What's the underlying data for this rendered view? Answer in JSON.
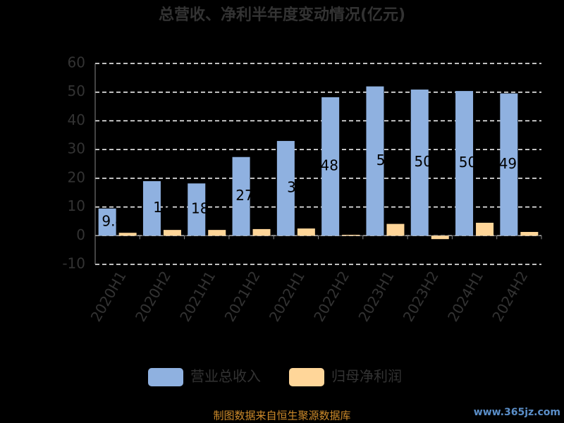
{
  "chart_data": {
    "type": "bar",
    "title": "总营收、净利半年度变动情况(亿元)",
    "categories": [
      "2020H1",
      "2020H2",
      "2021H1",
      "2021H2",
      "2022H1",
      "2022H2",
      "2023H1",
      "2023H2",
      "2024H1",
      "2024H2"
    ],
    "series": [
      {
        "name": "营业总收入",
        "color": "#8fb1e0",
        "values": [
          9.46,
          19.0,
          18.2,
          27.4,
          33.0,
          48.24,
          52.0,
          50.9,
          50.4,
          49.56
        ],
        "show_labels": true
      },
      {
        "name": "归母净利润",
        "color": "#ffd699",
        "values": [
          1.0,
          2.0,
          2.0,
          2.3,
          2.5,
          0.3,
          4.1,
          -1.2,
          4.5,
          1.3
        ],
        "show_labels": false
      }
    ],
    "ylim": [
      -10,
      60
    ],
    "yticks": [
      -10,
      0,
      10,
      20,
      30,
      40,
      50,
      60
    ],
    "grid": true,
    "legend": "bottom",
    "footer": "制图数据来自恒生聚源数据库",
    "watermark": "www.365jz.com"
  }
}
